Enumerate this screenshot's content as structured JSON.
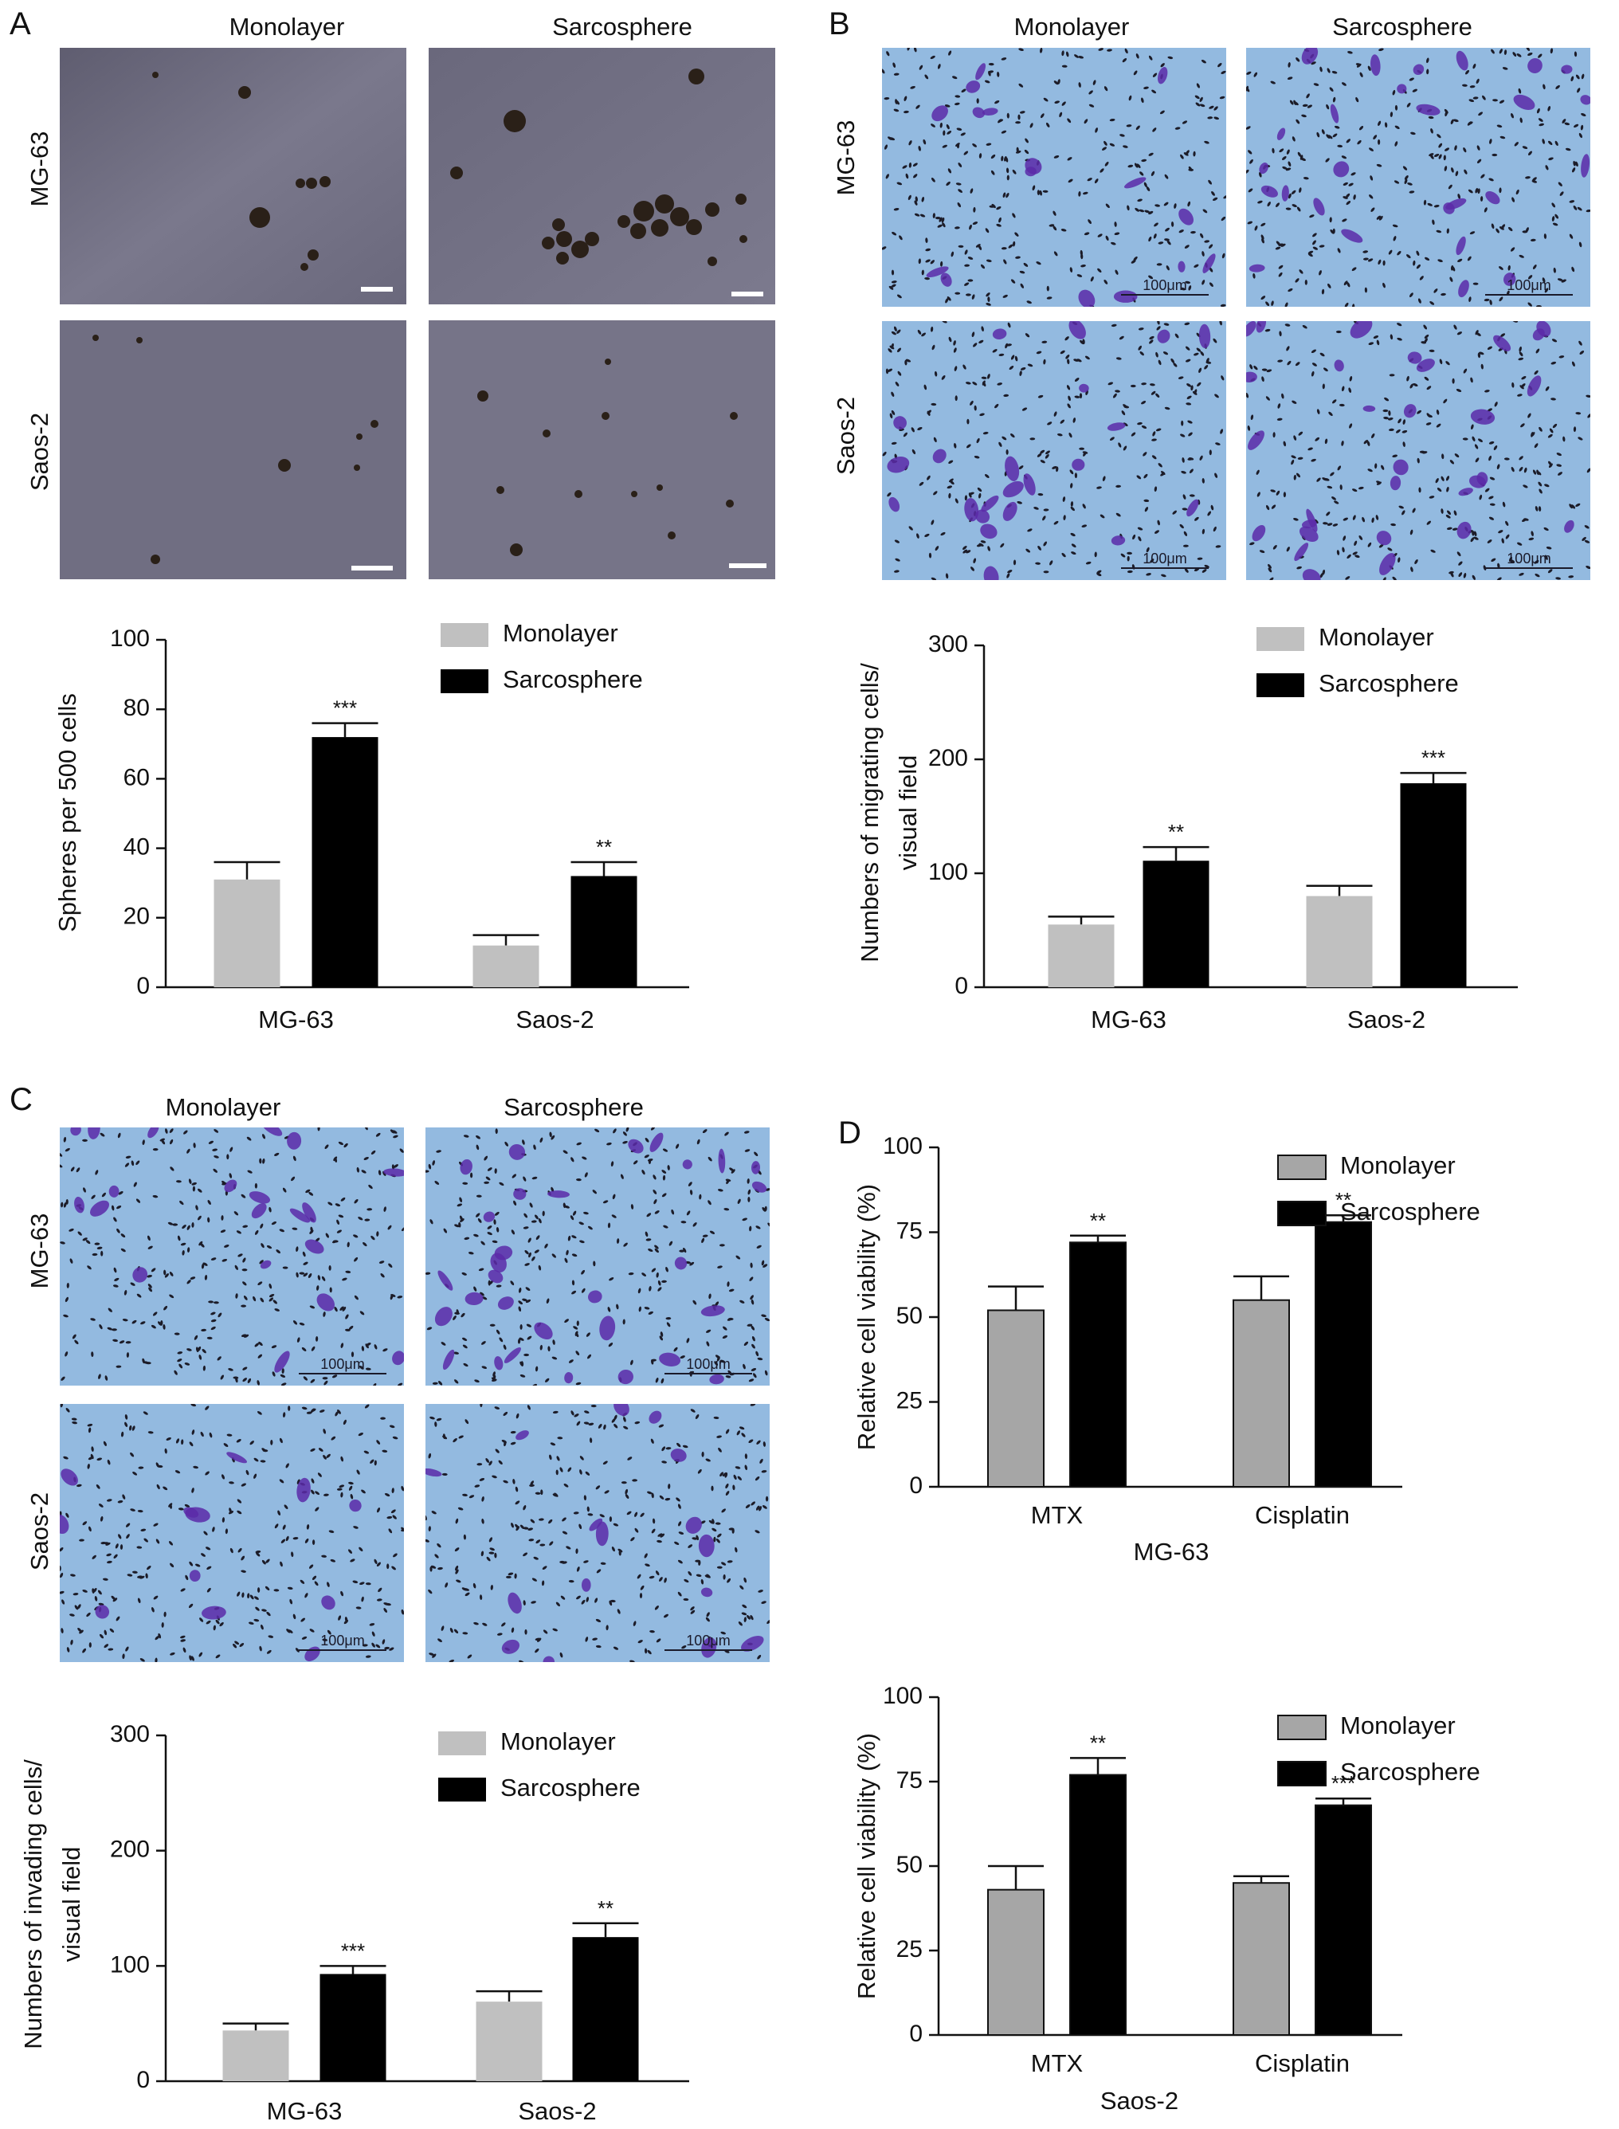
{
  "panels": {
    "A": {
      "letter": "A",
      "columns": [
        "Monolayer",
        "Sarcosphere"
      ],
      "rows": [
        "MG-63",
        "Saos-2"
      ]
    },
    "B": {
      "letter": "B",
      "columns": [
        "Monolayer",
        "Sarcosphere"
      ],
      "rows": [
        "MG-63",
        "Saos-2"
      ],
      "scale_label": "100μm"
    },
    "C": {
      "letter": "C",
      "columns": [
        "Monolayer",
        "Sarcosphere"
      ],
      "rows": [
        "MG-63",
        "Saos-2"
      ],
      "scale_label": "100μm"
    },
    "D": {
      "letter": "D"
    }
  },
  "colors": {
    "monolayer_light": "#c0c0c0",
    "monolayer_mid": "#a6a6a6",
    "sarcosphere": "#000000",
    "invasion_bg": "#8fc5e0",
    "invasion_stain": "#5a2aa8",
    "sphere_bg": "#6d6b80"
  },
  "chart_data": [
    {
      "id": "A",
      "type": "bar",
      "title": "",
      "categories": [
        "MG-63",
        "Saos-2"
      ],
      "series": [
        {
          "name": "Monolayer",
          "values": [
            31,
            12
          ],
          "errors": [
            5,
            3
          ],
          "color": "#c0c0c0"
        },
        {
          "name": "Sarcosphere",
          "values": [
            72,
            32
          ],
          "errors": [
            4,
            4
          ],
          "color": "#000000"
        }
      ],
      "significance": [
        [
          "",
          ""
        ],
        [
          "***",
          "**"
        ]
      ],
      "ylabel": "Spheres per 500 cells",
      "xlabel": "",
      "ylim": [
        0,
        100
      ],
      "yticks": [
        "0",
        "20",
        "40",
        "60",
        "80",
        "100"
      ],
      "legend": "top-right",
      "grid": false
    },
    {
      "id": "B",
      "type": "bar",
      "title": "",
      "categories": [
        "MG-63",
        "Saos-2"
      ],
      "series": [
        {
          "name": "Monolayer",
          "values": [
            55,
            80
          ],
          "errors": [
            7,
            9
          ],
          "color": "#c0c0c0"
        },
        {
          "name": "Sarcosphere",
          "values": [
            111,
            179
          ],
          "errors": [
            12,
            9
          ],
          "color": "#000000"
        }
      ],
      "significance": [
        [
          "",
          ""
        ],
        [
          "**",
          "***"
        ]
      ],
      "ylabel": "Numbers of migrating cells/ visual field",
      "xlabel": "",
      "ylim": [
        0,
        300
      ],
      "yticks": [
        "0",
        "100",
        "200",
        "300"
      ],
      "legend": "top-right",
      "grid": false
    },
    {
      "id": "C",
      "type": "bar",
      "title": "",
      "categories": [
        "MG-63",
        "Saos-2"
      ],
      "series": [
        {
          "name": "Monolayer",
          "values": [
            44,
            69
          ],
          "errors": [
            6,
            9
          ],
          "color": "#c0c0c0"
        },
        {
          "name": "Sarcosphere",
          "values": [
            93,
            125
          ],
          "errors": [
            7,
            12
          ],
          "color": "#000000"
        }
      ],
      "significance": [
        [
          "",
          ""
        ],
        [
          "***",
          "**"
        ]
      ],
      "ylabel": "Numbers of invading cells/ visual field",
      "xlabel": "",
      "ylim": [
        0,
        300
      ],
      "yticks": [
        "0",
        "100",
        "200",
        "300"
      ],
      "legend": "top-right",
      "grid": false
    },
    {
      "id": "D-MG63",
      "type": "bar",
      "title": "",
      "categories": [
        "MTX",
        "Cisplatin"
      ],
      "series": [
        {
          "name": "Monolayer",
          "values": [
            52,
            55
          ],
          "errors": [
            7,
            7
          ],
          "color": "#a6a6a6"
        },
        {
          "name": "Sarcosphere",
          "values": [
            72,
            78
          ],
          "errors": [
            2,
            2
          ],
          "color": "#000000"
        }
      ],
      "significance": [
        [
          "",
          ""
        ],
        [
          "**",
          "**"
        ]
      ],
      "ylabel": "Relative cell viability (%)",
      "xlabel": "MG-63",
      "ylim": [
        0,
        100
      ],
      "yticks": [
        "0",
        "25",
        "50",
        "75",
        "100"
      ],
      "legend": "top-right",
      "grid": false
    },
    {
      "id": "D-Saos2",
      "type": "bar",
      "title": "",
      "categories": [
        "MTX",
        "Cisplatin"
      ],
      "series": [
        {
          "name": "Monolayer",
          "values": [
            43,
            45
          ],
          "errors": [
            7,
            2
          ],
          "color": "#a6a6a6"
        },
        {
          "name": "Sarcosphere",
          "values": [
            77,
            68
          ],
          "errors": [
            5,
            2
          ],
          "color": "#000000"
        }
      ],
      "significance": [
        [
          "",
          ""
        ],
        [
          "**",
          "***"
        ]
      ],
      "ylabel": "Relative cell viability (%)",
      "xlabel": "Saos-2",
      "ylim": [
        0,
        100
      ],
      "yticks": [
        "0",
        "25",
        "50",
        "75",
        "100"
      ],
      "legend": "top-right",
      "grid": false
    }
  ]
}
